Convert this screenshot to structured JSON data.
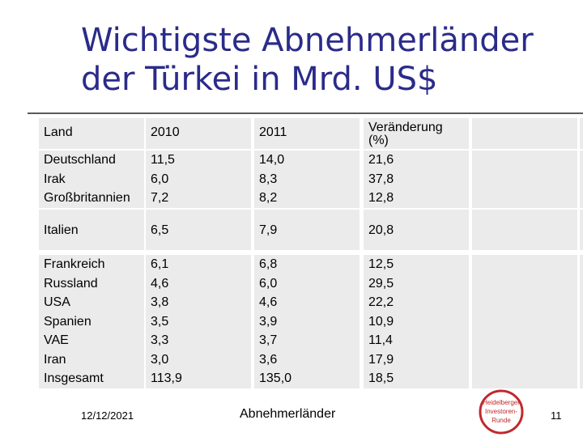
{
  "title": {
    "line1": "Wichtigste Abnehmerländer",
    "line2": "der Türkei in Mrd. US$"
  },
  "table": {
    "headers": {
      "land": "Land",
      "y2010": "2010",
      "y2011": "2011",
      "change_line1": "Veränderung",
      "change_line2": "(%)"
    },
    "groups": [
      {
        "rows": [
          {
            "land": "Deutschland",
            "y2010": "11,5",
            "y2011": "14,0",
            "change": "21,6"
          },
          {
            "land": "Irak",
            "y2010": "6,0",
            "y2011": "8,3",
            "change": "37,8"
          },
          {
            "land": "Großbritannien",
            "y2010": "7,2",
            "y2011": "8,2",
            "change": "12,8"
          }
        ]
      },
      {
        "rows": [
          {
            "land": "Italien",
            "y2010": "6,5",
            "y2011": "7,9",
            "change": "20,8"
          }
        ]
      },
      {
        "rows": [
          {
            "land": "Frankreich",
            "y2010": "6,1",
            "y2011": "6,8",
            "change": "12,5"
          },
          {
            "land": "Russland",
            "y2010": "4,6",
            "y2011": "6,0",
            "change": "29,5"
          },
          {
            "land": "USA",
            "y2010": "3,8",
            "y2011": "4,6",
            "change": "22,2"
          },
          {
            "land": "Spanien",
            "y2010": "3,5",
            "y2011": "3,9",
            "change": "10,9"
          },
          {
            "land": "VAE",
            "y2010": "3,3",
            "y2011": "3,7",
            "change": "11,4"
          },
          {
            "land": "Iran",
            "y2010": "3,0",
            "y2011": "3,6",
            "change": "17,9"
          },
          {
            "land": "Insgesamt",
            "y2010": "113,9",
            "y2011": "135,0",
            "change": "18,5"
          }
        ]
      }
    ]
  },
  "footer": {
    "date": "12/12/2021",
    "center": "Abnehmerländer",
    "page": "11"
  },
  "logo": {
    "line1": "Heidelberger",
    "line2": "Investoren-",
    "line3": "Runde",
    "color": "#c0282d"
  }
}
